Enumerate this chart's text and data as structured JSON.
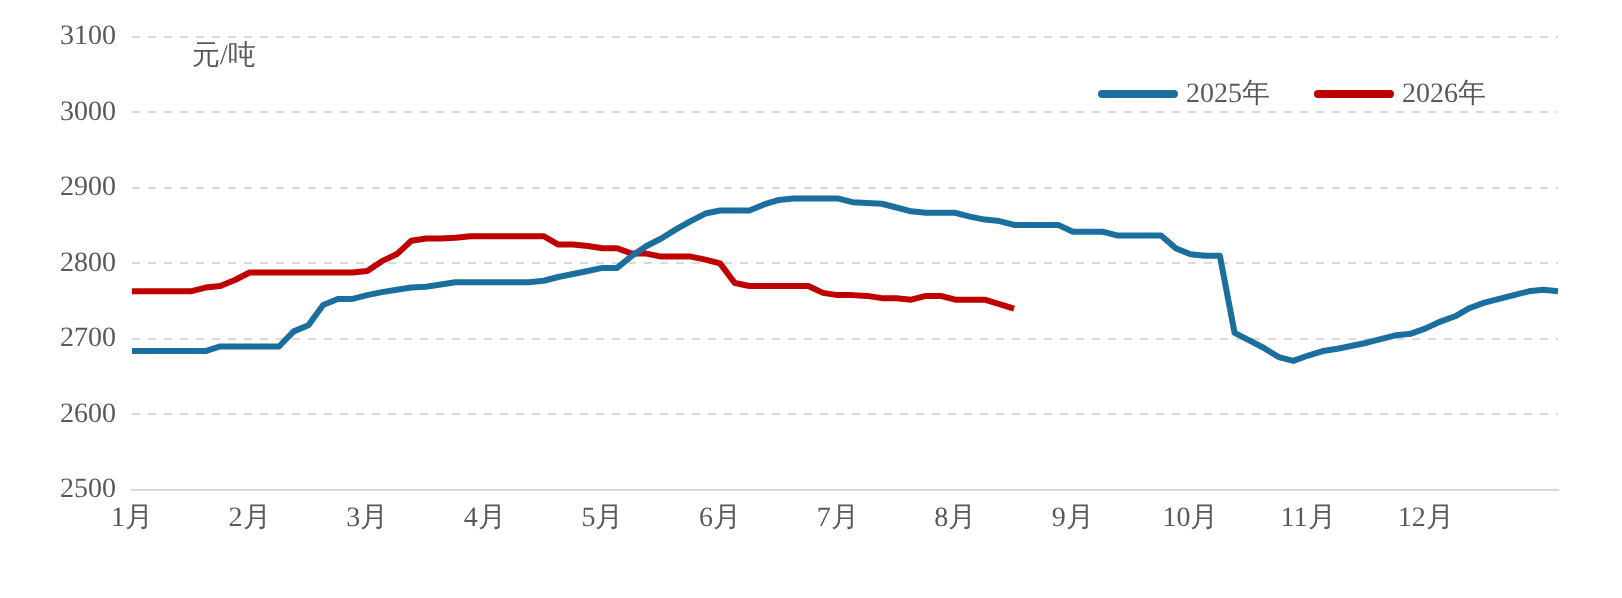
{
  "chart_data": {
    "type": "line",
    "ylabel": "元/吨",
    "categories": [
      "1月",
      null,
      null,
      null,
      null,
      null,
      null,
      null,
      "2月",
      null,
      null,
      null,
      null,
      null,
      null,
      null,
      "3月",
      null,
      null,
      null,
      null,
      null,
      null,
      null,
      "4月",
      null,
      null,
      null,
      null,
      null,
      null,
      null,
      "5月",
      null,
      null,
      null,
      null,
      null,
      null,
      null,
      "6月",
      null,
      null,
      null,
      null,
      null,
      null,
      null,
      "7月",
      null,
      null,
      null,
      null,
      null,
      null,
      null,
      "8月",
      null,
      null,
      null,
      null,
      null,
      null,
      null,
      "9月",
      null,
      null,
      null,
      null,
      null,
      null,
      null,
      "10月",
      null,
      null,
      null,
      null,
      null,
      null,
      null,
      "11月",
      null,
      null,
      null,
      null,
      null,
      null,
      null,
      "12月",
      null,
      null,
      null,
      null,
      null,
      null,
      null,
      null,
      null
    ],
    "series": [
      {
        "name": "2025年",
        "color": "#1b6f9e",
        "values": [
          2684,
          2684,
          2684,
          2684,
          2684,
          2684,
          2690,
          2690,
          2690,
          2690,
          2690,
          2710,
          2718,
          2745,
          2753,
          2753,
          2758,
          2762,
          2765,
          2768,
          2769,
          2772,
          2775,
          2775,
          2775,
          2775,
          2775,
          2775,
          2777,
          2782,
          2786,
          2790,
          2794,
          2794,
          2810,
          2823,
          2833,
          2845,
          2856,
          2866,
          2870,
          2870,
          2870,
          2878,
          2884,
          2886,
          2886,
          2886,
          2886,
          2881,
          2880,
          2879,
          2874,
          2869,
          2867,
          2867,
          2867,
          2862,
          2858,
          2856,
          2851,
          2851,
          2851,
          2851,
          2842,
          2842,
          2842,
          2837,
          2837,
          2837,
          2837,
          2820,
          2812,
          2810,
          2810,
          2708,
          2698,
          2688,
          2676,
          2671,
          2678,
          2684,
          2687,
          2691,
          2695,
          2700,
          2705,
          2707,
          2714,
          2723,
          2730,
          2741,
          2748,
          2753,
          2758,
          2763,
          2765,
          2763
        ]
      },
      {
        "name": "2026年",
        "color": "#c00000",
        "values": [
          2763,
          2763,
          2763,
          2763,
          2763,
          2768,
          2770,
          2778,
          2788,
          2788,
          2788,
          2788,
          2788,
          2788,
          2788,
          2788,
          2790,
          2803,
          2812,
          2830,
          2833,
          2833,
          2834,
          2836,
          2836,
          2836,
          2836,
          2836,
          2836,
          2825,
          2825,
          2823,
          2820,
          2820,
          2813,
          2813,
          2809,
          2809,
          2809,
          2805,
          2800,
          2774,
          2770,
          2770,
          2770,
          2770,
          2770,
          2761,
          2758,
          2758,
          2757,
          2754,
          2754,
          2752,
          2757,
          2757,
          2752,
          2752,
          2752,
          2746,
          2740,
          null,
          null,
          null,
          null,
          null,
          null,
          null,
          null,
          null,
          null,
          null,
          null,
          null,
          null,
          null,
          null,
          null,
          null,
          null,
          null,
          null,
          null,
          null,
          null,
          null,
          null,
          null,
          null,
          null,
          null,
          null,
          null,
          null,
          null,
          null,
          null,
          null
        ]
      }
    ],
    "ylim": [
      2500,
      3100
    ],
    "yticks": [
      2500,
      2600,
      2700,
      2800,
      2900,
      3000,
      3100
    ],
    "grid": "y",
    "legend": "top right",
    "marker": "none",
    "line_style": "solid"
  }
}
